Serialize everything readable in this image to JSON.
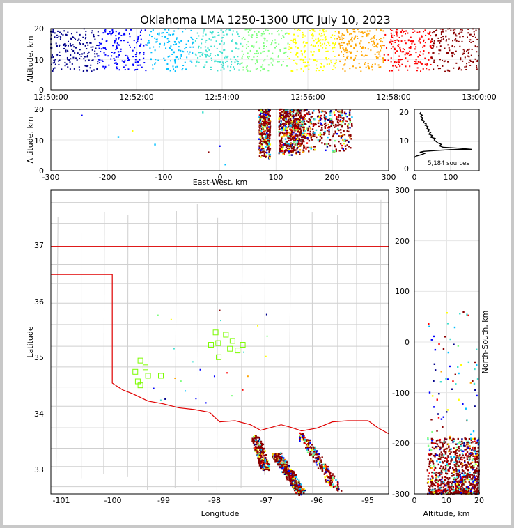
{
  "title": "Oklahoma LMA 1250-1300 UTC July 10, 2023",
  "panels": {
    "time_height": {
      "ylabel": "Altitude, km",
      "y_ticks": [
        "0",
        "10",
        "20"
      ],
      "x_ticks": [
        "12:50:00",
        "12:52:00",
        "12:54:00",
        "12:56:00",
        "12:58:00",
        "13:00:00"
      ]
    },
    "ew_height": {
      "ylabel": "Altitude, km",
      "xlabel": "East-West, km",
      "x_ticks": [
        "-300",
        "-200",
        "-100",
        "0",
        "100",
        "200",
        "300"
      ],
      "y_ticks": [
        "0",
        "10",
        "20"
      ]
    },
    "histogram": {
      "annotation": "5,184 sources",
      "x_ticks": [
        "0",
        "100"
      ],
      "y_ticks": [
        "0",
        "10",
        "20"
      ]
    },
    "plan": {
      "xlabel": "Longitude",
      "ylabel": "Latitude",
      "x_ticks": [
        "-101",
        "-100",
        "-99",
        "-98",
        "-97",
        "-96",
        "-95"
      ],
      "y_ticks": [
        "33",
        "34",
        "35",
        "36",
        "37"
      ]
    },
    "ns_height": {
      "xlabel": "Altitude, km",
      "ylabel": "North-South, km",
      "x_ticks": [
        "0",
        "10",
        "20"
      ],
      "y_ticks": [
        "-300",
        "-200",
        "-100",
        "0",
        "100",
        "200",
        "300"
      ]
    }
  },
  "colors": {
    "border": "#e00000",
    "county": "#c8c8c8",
    "station": "#7cfc00",
    "colormap": [
      "#00008b",
      "#0000ff",
      "#00bfff",
      "#40e0d0",
      "#7fff7f",
      "#ffff00",
      "#ffa500",
      "#ff0000",
      "#8b0000"
    ]
  },
  "chart_data": [
    {
      "type": "scatter",
      "panel": "time_height",
      "xlabel": "",
      "ylabel": "Altitude, km",
      "xlim": [
        "12:50:00",
        "13:00:00"
      ],
      "ylim": [
        0,
        20
      ],
      "color_by": "time",
      "summary": "Sources spread continuously over the 10 minutes, mostly between 6 and 20 km altitude"
    },
    {
      "type": "scatter",
      "panel": "ew_height",
      "xlabel": "East-West, km",
      "ylabel": "Altitude, km",
      "xlim": [
        -300,
        300
      ],
      "ylim": [
        0,
        20
      ],
      "clusters": [
        {
          "x_range": [
            70,
            90
          ],
          "y_range": [
            4,
            20
          ]
        },
        {
          "x_range": [
            105,
            150
          ],
          "y_range": [
            5,
            20
          ]
        },
        {
          "x_range": [
            150,
            235
          ],
          "y_range": [
            6,
            20
          ]
        }
      ],
      "outliers": [
        [
          -245,
          18
        ],
        [
          -180,
          11
        ],
        [
          -155,
          13
        ],
        [
          -115,
          8.5
        ],
        [
          -30,
          19
        ],
        [
          -20,
          6
        ],
        [
          0,
          8
        ],
        [
          10,
          2
        ]
      ]
    },
    {
      "type": "line",
      "panel": "histogram",
      "annotation": "5,184 sources",
      "xlim": [
        0,
        180
      ],
      "ylim": [
        0,
        21
      ],
      "points": [
        [
          0,
          4.5
        ],
        [
          5,
          5
        ],
        [
          20,
          5.5
        ],
        [
          30,
          6
        ],
        [
          15,
          6.3
        ],
        [
          25,
          6.6
        ],
        [
          60,
          6.9
        ],
        [
          100,
          7.2
        ],
        [
          160,
          7.3
        ],
        [
          120,
          7.7
        ],
        [
          80,
          8
        ],
        [
          70,
          8.5
        ],
        [
          75,
          9
        ],
        [
          65,
          9.5
        ],
        [
          60,
          10
        ],
        [
          55,
          10.5
        ],
        [
          58,
          11
        ],
        [
          45,
          11.5
        ],
        [
          50,
          12
        ],
        [
          40,
          12.5
        ],
        [
          45,
          13
        ],
        [
          38,
          13.5
        ],
        [
          42,
          14
        ],
        [
          35,
          14.5
        ],
        [
          38,
          15
        ],
        [
          30,
          15.5
        ],
        [
          33,
          16
        ],
        [
          25,
          16.5
        ],
        [
          28,
          17
        ],
        [
          20,
          17.5
        ],
        [
          24,
          18
        ],
        [
          18,
          18.5
        ],
        [
          22,
          19
        ],
        [
          15,
          19.5
        ],
        [
          18,
          20
        ]
      ]
    },
    {
      "type": "scatter",
      "panel": "plan",
      "xlabel": "Longitude",
      "ylabel": "Latitude",
      "xlim": [
        -101.2,
        -94.6
      ],
      "ylim": [
        32.6,
        38.0
      ],
      "stations": [
        [
          -99.45,
          34.97
        ],
        [
          -99.35,
          34.85
        ],
        [
          -99.55,
          34.77
        ],
        [
          -99.3,
          34.7
        ],
        [
          -99.05,
          34.7
        ],
        [
          -99.5,
          34.6
        ],
        [
          -99.45,
          34.53
        ],
        [
          -97.98,
          35.47
        ],
        [
          -97.78,
          35.43
        ],
        [
          -97.65,
          35.32
        ],
        [
          -97.93,
          35.28
        ],
        [
          -98.07,
          35.25
        ],
        [
          -97.7,
          35.18
        ],
        [
          -97.55,
          35.15
        ],
        [
          -97.45,
          35.25
        ],
        [
          -97.92,
          35.03
        ]
      ],
      "storm_bands": [
        {
          "from": [
            -97.2,
            33.6
          ],
          "to": [
            -97.0,
            33.05
          ]
        },
        {
          "from": [
            -96.8,
            33.3
          ],
          "to": [
            -96.3,
            32.62
          ]
        },
        {
          "from": [
            -96.3,
            33.65
          ],
          "to": [
            -95.6,
            32.68
          ]
        }
      ]
    },
    {
      "type": "scatter",
      "panel": "ns_height",
      "xlabel": "Altitude, km",
      "ylabel": "North-South, km",
      "xlim": [
        0,
        20
      ],
      "ylim": [
        -300,
        300
      ],
      "summary": "Dense cluster from -300 to -190 km at 4-20 km altitude, sparse points near 0 km"
    }
  ]
}
